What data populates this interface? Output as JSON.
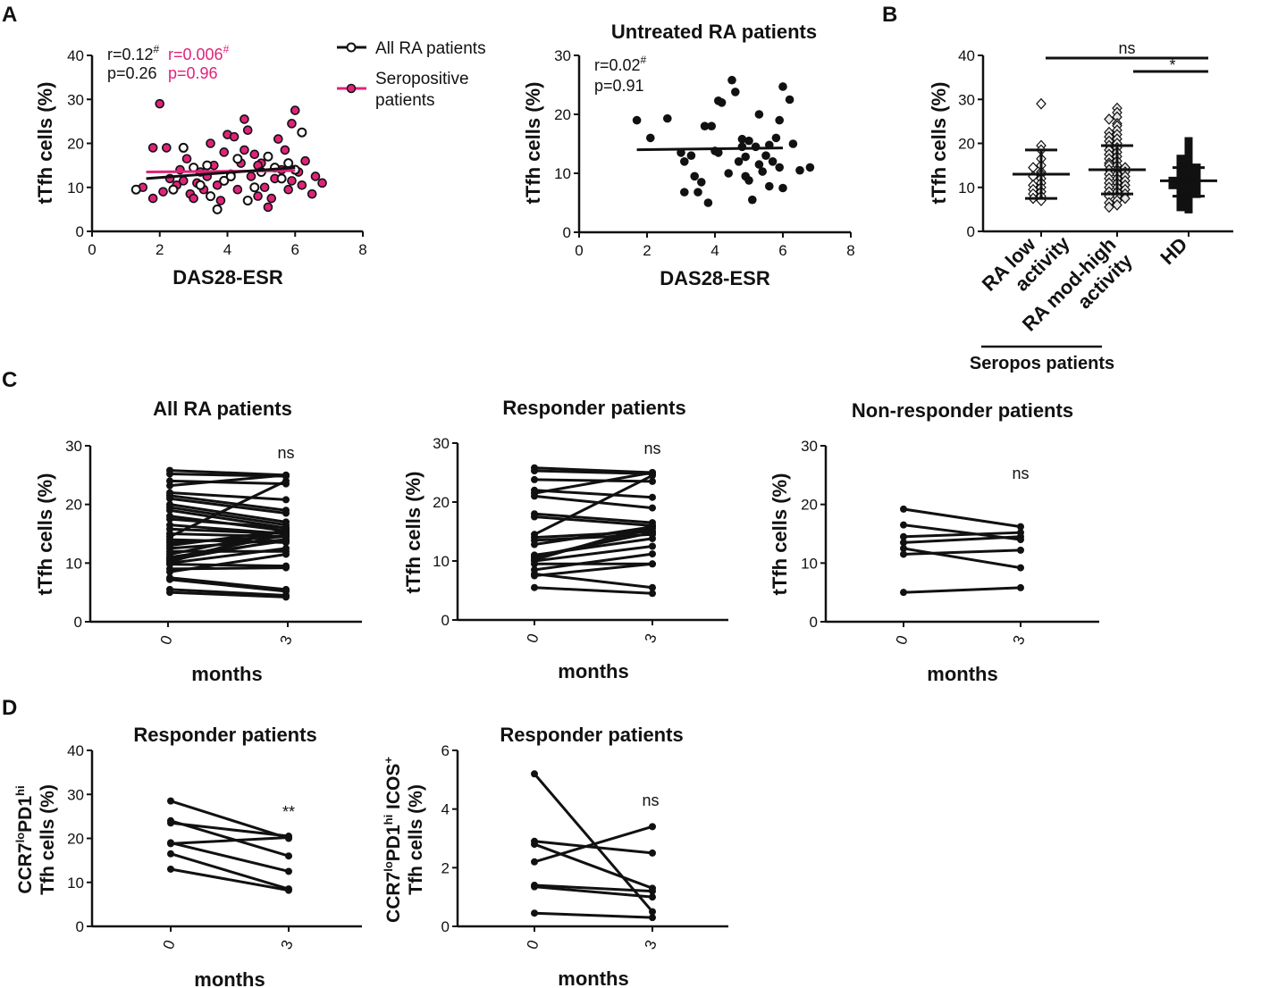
{
  "panel_labels": {
    "a": "A",
    "b": "B",
    "c": "C",
    "d": "D"
  },
  "colors": {
    "ink": "#111111",
    "seropositive": "#e0237a",
    "open_marker": "#ffffff",
    "diamond_fill": "#e6e6e6"
  },
  "chart_data": [
    {
      "id": "A1",
      "type": "scatter",
      "xlabel": "DAS28-ESR",
      "ylabel": "tTfh cells (%)",
      "xlim": [
        0,
        8
      ],
      "ylim": [
        0,
        40
      ],
      "xticks": [
        "0",
        "2",
        "4",
        "6",
        "8"
      ],
      "yticks": [
        "0",
        "10",
        "20",
        "30",
        "40"
      ],
      "stats": {
        "all_r": "r=0.12",
        "all_p": "p=0.26",
        "sero_r": "r=0.006",
        "sero_p": "p=0.96",
        "hash": "#"
      },
      "legend": [
        {
          "name": "All RA patients",
          "color": "#111111"
        },
        {
          "name": "Seropositive",
          "name2": "patients",
          "color": "#e0237a"
        }
      ],
      "fit_all": [
        [
          1.6,
          12.0
        ],
        [
          6.0,
          14.5
        ]
      ],
      "fit_sero": [
        [
          1.6,
          13.5
        ],
        [
          6.0,
          13.8
        ]
      ],
      "series": [
        {
          "name": "Seropositive patients",
          "marker": "filled-pink",
          "points": [
            [
              2.0,
              29.0
            ],
            [
              1.8,
              19.0
            ],
            [
              2.2,
              19.0
            ],
            [
              1.5,
              10.0
            ],
            [
              1.8,
              7.5
            ],
            [
              2.1,
              9.0
            ],
            [
              2.3,
              12.0
            ],
            [
              2.5,
              10.5
            ],
            [
              2.6,
              14.0
            ],
            [
              2.8,
              16.5
            ],
            [
              2.9,
              8.5
            ],
            [
              3.0,
              7.5
            ],
            [
              3.1,
              11.0
            ],
            [
              3.2,
              13.5
            ],
            [
              3.3,
              9.5
            ],
            [
              3.5,
              20.0
            ],
            [
              3.6,
              15.0
            ],
            [
              3.7,
              10.5
            ],
            [
              3.8,
              7.0
            ],
            [
              3.9,
              18.0
            ],
            [
              4.0,
              22.0
            ],
            [
              4.1,
              13.0
            ],
            [
              4.2,
              21.5
            ],
            [
              4.3,
              9.5
            ],
            [
              4.4,
              15.5
            ],
            [
              4.5,
              25.5
            ],
            [
              4.6,
              23.0
            ],
            [
              4.7,
              12.5
            ],
            [
              4.8,
              17.5
            ],
            [
              4.9,
              8.0
            ],
            [
              5.0,
              15.5
            ],
            [
              5.1,
              10.0
            ],
            [
              5.2,
              5.5
            ],
            [
              5.3,
              7.5
            ],
            [
              5.4,
              12.0
            ],
            [
              5.5,
              21.0
            ],
            [
              5.6,
              14.0
            ],
            [
              5.7,
              18.5
            ],
            [
              5.8,
              9.5
            ],
            [
              5.9,
              11.5
            ],
            [
              6.0,
              27.5
            ],
            [
              6.1,
              13.5
            ],
            [
              6.2,
              10.5
            ],
            [
              6.3,
              16.0
            ],
            [
              6.5,
              8.5
            ],
            [
              6.6,
              12.5
            ],
            [
              6.8,
              11.0
            ],
            [
              5.9,
              24.5
            ],
            [
              4.5,
              18.5
            ],
            [
              3.4,
              12.5
            ],
            [
              2.7,
              11.5
            ],
            [
              4.9,
              15.0
            ]
          ]
        },
        {
          "name": "All RA patients",
          "marker": "open-black",
          "points": [
            [
              1.3,
              9.5
            ],
            [
              2.7,
              19.0
            ],
            [
              3.0,
              14.5
            ],
            [
              3.2,
              10.5
            ],
            [
              3.5,
              8.0
            ],
            [
              3.7,
              5.0
            ],
            [
              3.9,
              11.5
            ],
            [
              4.1,
              12.5
            ],
            [
              4.3,
              16.5
            ],
            [
              4.6,
              7.0
            ],
            [
              4.8,
              10.0
            ],
            [
              5.0,
              13.5
            ],
            [
              5.2,
              17.0
            ],
            [
              5.4,
              14.5
            ],
            [
              5.6,
              12.0
            ],
            [
              5.8,
              15.5
            ],
            [
              6.0,
              14.0
            ],
            [
              6.2,
              22.5
            ],
            [
              3.4,
              15.0
            ],
            [
              2.4,
              9.5
            ]
          ]
        }
      ]
    },
    {
      "id": "A2",
      "type": "scatter",
      "title": "Untreated RA patients",
      "xlabel": "DAS28-ESR",
      "ylabel": "tTfh cells (%)",
      "xlim": [
        0,
        8
      ],
      "ylim": [
        0,
        30
      ],
      "xticks": [
        "0",
        "2",
        "4",
        "6",
        "8"
      ],
      "yticks": [
        "0",
        "10",
        "20",
        "30"
      ],
      "stats": {
        "r": "r=0.02",
        "p": "p=0.91",
        "hash": "#"
      },
      "fit": [
        [
          1.7,
          14.0
        ],
        [
          6.0,
          14.3
        ]
      ],
      "points": [
        [
          1.7,
          19.0
        ],
        [
          2.1,
          16.0
        ],
        [
          2.6,
          19.3
        ],
        [
          3.0,
          13.5
        ],
        [
          3.1,
          12.0
        ],
        [
          3.1,
          6.8
        ],
        [
          3.3,
          13.0
        ],
        [
          3.4,
          9.5
        ],
        [
          3.5,
          6.8
        ],
        [
          3.6,
          8.5
        ],
        [
          3.7,
          18.0
        ],
        [
          3.8,
          5.0
        ],
        [
          3.9,
          18.0
        ],
        [
          4.0,
          13.8
        ],
        [
          4.1,
          22.3
        ],
        [
          4.1,
          13.5
        ],
        [
          4.2,
          22.0
        ],
        [
          4.4,
          10.0
        ],
        [
          4.5,
          25.8
        ],
        [
          4.6,
          23.8
        ],
        [
          4.7,
          12.0
        ],
        [
          4.8,
          14.5
        ],
        [
          4.8,
          15.8
        ],
        [
          4.9,
          9.5
        ],
        [
          4.9,
          12.8
        ],
        [
          5.0,
          8.8
        ],
        [
          5.0,
          15.5
        ],
        [
          5.1,
          5.5
        ],
        [
          5.2,
          14.5
        ],
        [
          5.3,
          11.5
        ],
        [
          5.3,
          20.0
        ],
        [
          5.4,
          10.3
        ],
        [
          5.5,
          13.0
        ],
        [
          5.6,
          14.8
        ],
        [
          5.6,
          7.8
        ],
        [
          5.7,
          12.0
        ],
        [
          5.8,
          16.0
        ],
        [
          5.9,
          19.0
        ],
        [
          5.9,
          11.0
        ],
        [
          6.0,
          24.7
        ],
        [
          6.0,
          7.5
        ],
        [
          6.2,
          22.5
        ],
        [
          6.3,
          15.0
        ],
        [
          6.5,
          10.5
        ],
        [
          6.8,
          11.0
        ]
      ]
    },
    {
      "id": "B",
      "type": "dot-plot",
      "ylabel": "tTfh cells (%)",
      "ylim": [
        0,
        40
      ],
      "yticks": [
        "0",
        "10",
        "20",
        "30",
        "40"
      ],
      "categories": [
        "RA low activity",
        "RA mod-high activity",
        "HD"
      ],
      "category_lines": [
        [
          "RA low",
          "activity"
        ],
        [
          "RA mod-high",
          "activity"
        ],
        [
          "HD"
        ]
      ],
      "group_label": "Seropos patients",
      "sig": [
        {
          "from": 0,
          "to": 2,
          "label": "ns"
        },
        {
          "from": 1,
          "to": 2,
          "label": "*"
        }
      ],
      "summary": [
        {
          "median": 13.0,
          "low": 7.5,
          "high": 18.5
        },
        {
          "median": 14.0,
          "low": 8.5,
          "high": 19.5
        },
        {
          "median": 11.5,
          "low": 8.0,
          "high": 14.5
        }
      ],
      "groups": [
        {
          "name": "RA low activity",
          "marker": "diamond-open",
          "values": [
            29.0,
            19.5,
            18.5,
            16.5,
            15.0,
            14.5,
            13.5,
            13.0,
            12.5,
            12.0,
            11.0,
            10.5,
            10.0,
            9.5,
            9.0,
            8.5,
            8.0,
            7.5,
            7.0
          ]
        },
        {
          "name": "RA mod-high activity",
          "marker": "diamond-gray",
          "values": [
            28.0,
            27.0,
            26.0,
            25.5,
            24.5,
            24.0,
            23.0,
            22.5,
            22.0,
            21.5,
            21.0,
            20.5,
            20.0,
            19.5,
            19.0,
            18.5,
            18.0,
            17.5,
            17.0,
            16.5,
            16.0,
            15.5,
            15.0,
            15.0,
            14.5,
            14.0,
            14.0,
            13.5,
            13.0,
            13.0,
            12.5,
            12.0,
            12.0,
            11.5,
            11.0,
            11.0,
            10.5,
            10.0,
            10.0,
            9.5,
            9.0,
            9.0,
            8.5,
            8.0,
            8.0,
            7.5,
            7.0,
            6.5,
            6.0,
            5.5
          ]
        },
        {
          "name": "HD",
          "marker": "square-black",
          "values": [
            20.5,
            19.5,
            18.5,
            18.0,
            17.0,
            16.5,
            16.0,
            15.5,
            15.0,
            14.5,
            14.5,
            14.0,
            14.0,
            13.5,
            13.0,
            13.0,
            12.5,
            12.0,
            12.0,
            11.5,
            11.5,
            11.0,
            11.0,
            10.5,
            10.5,
            10.0,
            10.0,
            9.5,
            9.0,
            9.0,
            8.5,
            8.0,
            7.5,
            7.0,
            6.5,
            6.0,
            5.5,
            5.0
          ]
        }
      ]
    },
    {
      "id": "C1",
      "type": "paired-line",
      "title": "All RA patients",
      "ylabel": "tTfh cells (%)",
      "xlabel": "months",
      "x": [
        "0",
        "3"
      ],
      "ylim": [
        0,
        30
      ],
      "yticks": [
        "0",
        "10",
        "20",
        "30"
      ],
      "sig": "ns",
      "pairs": [
        [
          25.8,
          25.0
        ],
        [
          25.2,
          24.8
        ],
        [
          24.0,
          23.5
        ],
        [
          23.2,
          25.0
        ],
        [
          22.0,
          20.8
        ],
        [
          21.5,
          19.0
        ],
        [
          21.0,
          18.5
        ],
        [
          20.0,
          17.0
        ],
        [
          19.5,
          16.5
        ],
        [
          19.0,
          16.0
        ],
        [
          18.0,
          15.5
        ],
        [
          17.5,
          16.0
        ],
        [
          16.5,
          15.0
        ],
        [
          15.8,
          15.0
        ],
        [
          15.0,
          14.5
        ],
        [
          14.5,
          24.0
        ],
        [
          14.0,
          13.5
        ],
        [
          13.5,
          14.5
        ],
        [
          13.0,
          15.5
        ],
        [
          12.5,
          14.0
        ],
        [
          12.0,
          12.0
        ],
        [
          11.5,
          15.5
        ],
        [
          11.0,
          13.8
        ],
        [
          10.8,
          14.8
        ],
        [
          10.5,
          14.0
        ],
        [
          10.2,
          15.8
        ],
        [
          10.0,
          12.5
        ],
        [
          9.8,
          9.5
        ],
        [
          9.0,
          9.2
        ],
        [
          8.5,
          11.5
        ],
        [
          7.5,
          5.5
        ],
        [
          7.2,
          5.2
        ],
        [
          5.5,
          4.5
        ],
        [
          5.0,
          4.2
        ]
      ]
    },
    {
      "id": "C2",
      "type": "paired-line",
      "title": "Responder patients",
      "ylabel": "tTfh cells (%)",
      "xlabel": "months",
      "x": [
        "0",
        "3"
      ],
      "ylim": [
        0,
        30
      ],
      "yticks": [
        "0",
        "10",
        "20",
        "30"
      ],
      "sig": "ns",
      "pairs": [
        [
          25.8,
          25.0
        ],
        [
          25.3,
          24.8
        ],
        [
          23.8,
          23.5
        ],
        [
          22.0,
          20.8
        ],
        [
          21.5,
          25.0
        ],
        [
          21.0,
          19.0
        ],
        [
          18.0,
          16.5
        ],
        [
          17.5,
          16.0
        ],
        [
          14.5,
          24.5
        ],
        [
          14.0,
          15.0
        ],
        [
          13.5,
          14.5
        ],
        [
          12.8,
          15.8
        ],
        [
          11.0,
          13.8
        ],
        [
          10.8,
          14.8
        ],
        [
          10.5,
          15.5
        ],
        [
          10.2,
          16.0
        ],
        [
          10.0,
          12.5
        ],
        [
          9.5,
          9.5
        ],
        [
          8.5,
          11.2
        ],
        [
          7.8,
          5.5
        ],
        [
          7.5,
          9.5
        ],
        [
          5.5,
          4.5
        ]
      ]
    },
    {
      "id": "C3",
      "type": "paired-line",
      "title": "Non-responder patients",
      "ylabel": "tTfh cells (%)",
      "xlabel": "months",
      "x": [
        "0",
        "3"
      ],
      "ylim": [
        0,
        30
      ],
      "yticks": [
        "0",
        "10",
        "20",
        "30"
      ],
      "sig": "ns",
      "pairs": [
        [
          19.2,
          16.2
        ],
        [
          16.5,
          14.0
        ],
        [
          14.5,
          15.2
        ],
        [
          13.5,
          14.5
        ],
        [
          12.5,
          9.2
        ],
        [
          11.5,
          12.2
        ],
        [
          5.0,
          5.8
        ]
      ]
    },
    {
      "id": "D1",
      "type": "paired-line",
      "title": "Responder patients",
      "ylabel_main": "CCR7",
      "ylabel_sup1": "lo",
      "ylabel_mid": "PD1",
      "ylabel_sup2": "hi",
      "ylabel2": "Tfh cells (%)",
      "xlabel": "months",
      "x": [
        "0",
        "3"
      ],
      "ylim": [
        0,
        40
      ],
      "yticks": [
        "0",
        "10",
        "20",
        "30",
        "40"
      ],
      "sig": "**",
      "pairs": [
        [
          28.5,
          20.0
        ],
        [
          24.0,
          16.0
        ],
        [
          23.5,
          20.5
        ],
        [
          19.0,
          12.5
        ],
        [
          18.8,
          20.2
        ],
        [
          16.5,
          8.5
        ],
        [
          13.0,
          8.2
        ]
      ]
    },
    {
      "id": "D2",
      "type": "paired-line",
      "title": "Responder patients",
      "ylabel_main": "CCR7",
      "ylabel_sup1": "lo",
      "ylabel_mid": "PD1",
      "ylabel_sup2": "hi",
      "ylabel_tail": " ICOS",
      "ylabel_sup3": "+",
      "ylabel2": "Tfh cells (%)",
      "xlabel": "months",
      "x": [
        "0",
        "3"
      ],
      "ylim": [
        0,
        6
      ],
      "yticks": [
        "0",
        "2",
        "4",
        "6"
      ],
      "sig": "ns",
      "pairs": [
        [
          5.2,
          0.5
        ],
        [
          2.9,
          2.5
        ],
        [
          2.8,
          1.3
        ],
        [
          2.2,
          3.4
        ],
        [
          1.4,
          1.2
        ],
        [
          1.35,
          1.0
        ],
        [
          0.45,
          0.3
        ]
      ]
    }
  ]
}
